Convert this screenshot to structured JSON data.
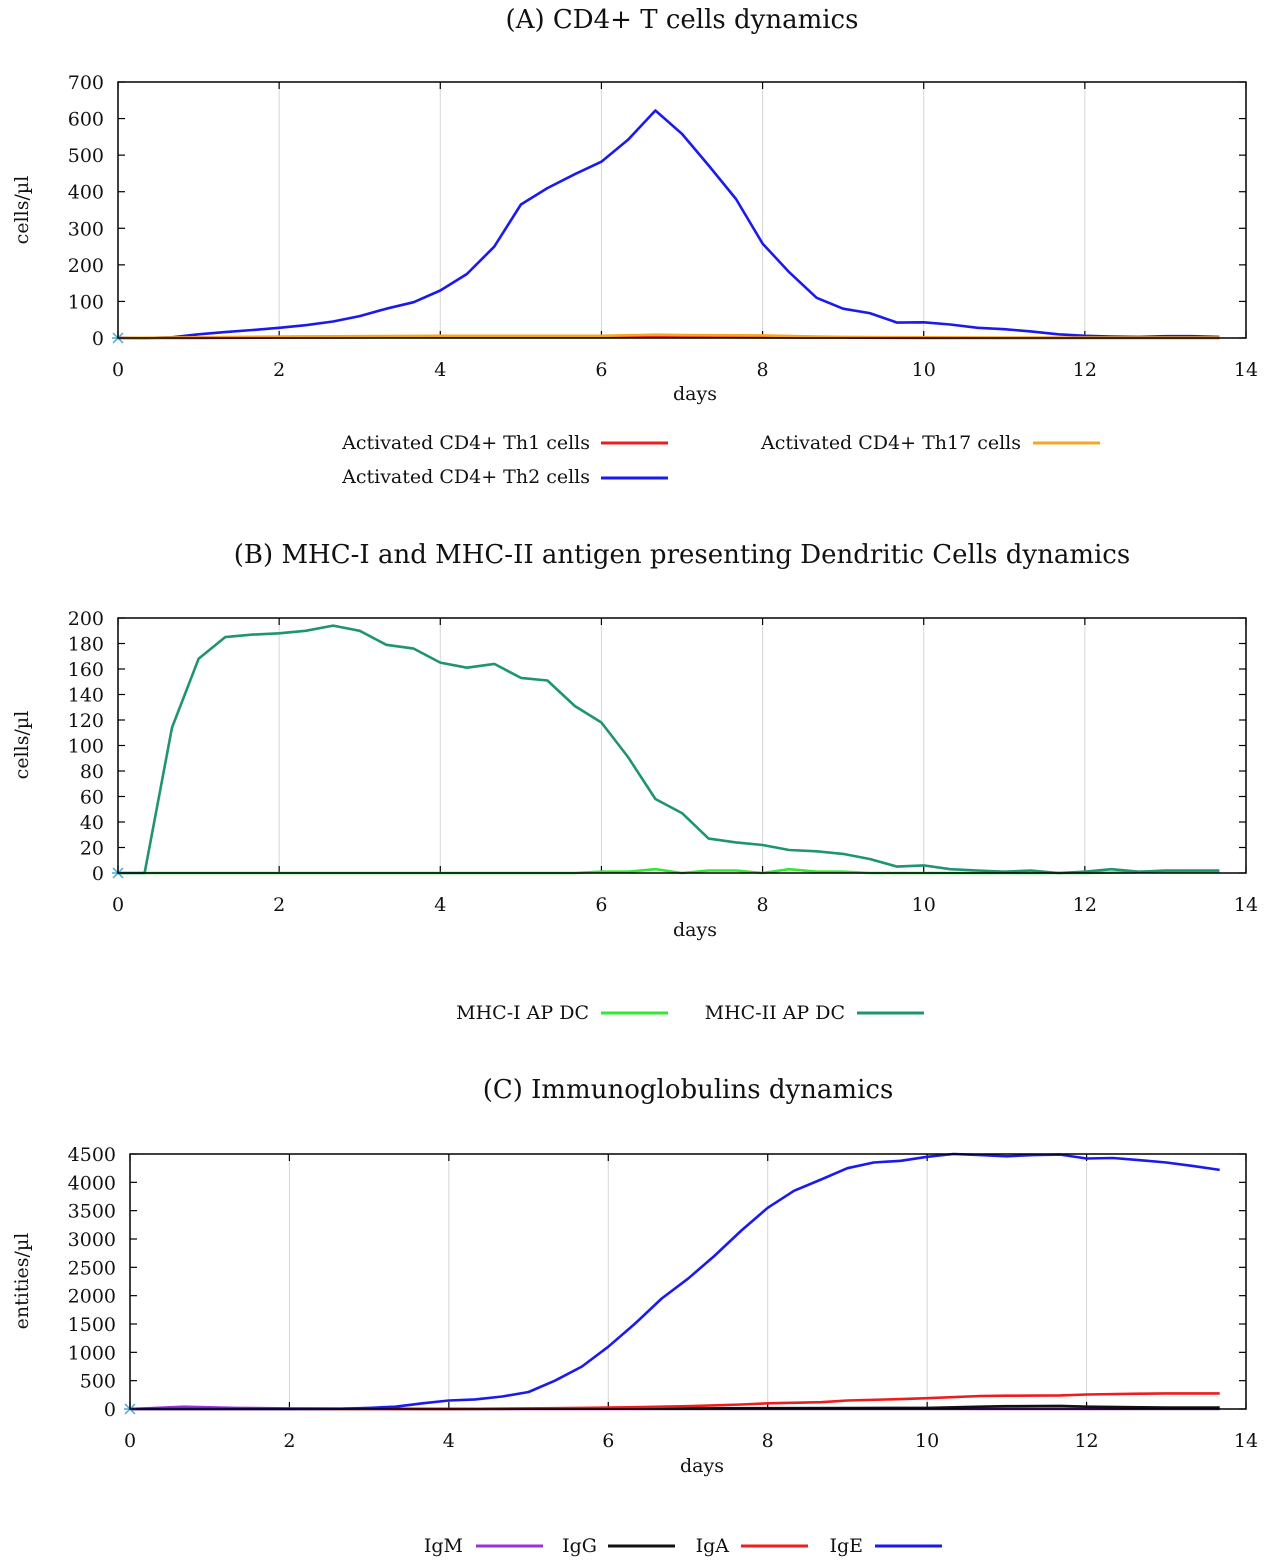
{
  "chart_data": [
    {
      "type": "line",
      "title": "(A) CD4+ T cells dynamics",
      "xlabel": "days",
      "ylabel": "cells/µl",
      "xlim": [
        0,
        14
      ],
      "ylim": [
        0,
        700
      ],
      "xticks": [
        0,
        2,
        4,
        6,
        8,
        10,
        12,
        14
      ],
      "yticks": [
        0,
        100,
        200,
        300,
        400,
        500,
        600,
        700
      ],
      "grid": true,
      "legend_position": "bottom",
      "series": [
        {
          "name": "Activated CD4+ Th1 cells",
          "color": "#ee1c1c",
          "x": [
            0,
            1,
            2,
            3,
            4,
            5,
            6,
            6.67,
            7,
            8,
            8.67,
            9,
            10,
            11,
            12,
            13,
            13.67
          ],
          "y": [
            0,
            0,
            1,
            2,
            3,
            3,
            3,
            4,
            3,
            2,
            1,
            1,
            0,
            0,
            0,
            0,
            0
          ]
        },
        {
          "name": "Activated CD4+ Th2 cells",
          "color": "#1a1aee",
          "x": [
            0,
            0.33,
            0.67,
            1,
            1.33,
            1.67,
            2,
            2.33,
            2.67,
            3,
            3.33,
            3.67,
            4,
            4.33,
            4.67,
            5,
            5.33,
            5.67,
            6,
            6.33,
            6.67,
            7,
            7.33,
            7.67,
            8,
            8.33,
            8.67,
            9,
            9.33,
            9.67,
            10,
            10.33,
            10.67,
            11,
            11.33,
            11.67,
            12,
            12.33,
            12.67,
            13,
            13.33,
            13.67
          ],
          "y": [
            0,
            0,
            2,
            10,
            16,
            22,
            28,
            35,
            45,
            60,
            80,
            98,
            130,
            175,
            250,
            365,
            410,
            448,
            482,
            542,
            622,
            558,
            472,
            380,
            258,
            180,
            110,
            80,
            68,
            42,
            43,
            37,
            28,
            24,
            18,
            10,
            6,
            4,
            3,
            5,
            5,
            3
          ]
        },
        {
          "name": "Activated CD4+ Th17 cells",
          "color": "#f5a623",
          "x": [
            0,
            1,
            2,
            3,
            4,
            5,
            6,
            6.67,
            7,
            8,
            8.67,
            9,
            10,
            11,
            12,
            13,
            13.67
          ],
          "y": [
            0,
            2,
            4,
            5,
            6,
            6,
            6,
            9,
            8,
            7,
            4,
            3,
            2,
            1,
            1,
            1,
            1
          ]
        }
      ]
    },
    {
      "type": "line",
      "title": "(B) MHC-I and MHC-II antigen presenting Dendritic Cells dynamics",
      "xlabel": "days",
      "ylabel": "cells/µl",
      "xlim": [
        0,
        14
      ],
      "ylim": [
        0,
        200
      ],
      "xticks": [
        0,
        2,
        4,
        6,
        8,
        10,
        12,
        14
      ],
      "yticks": [
        0,
        20,
        40,
        60,
        80,
        100,
        120,
        140,
        160,
        180,
        200
      ],
      "grid": true,
      "legend_position": "bottom",
      "series": [
        {
          "name": "MHC-I AP DC",
          "color": "#33e833",
          "x": [
            0,
            1,
            2,
            3,
            4,
            5,
            5.67,
            6,
            6.33,
            6.67,
            7,
            7.33,
            7.67,
            8,
            8.33,
            8.67,
            9,
            9.33,
            10,
            11,
            12,
            13,
            13.67
          ],
          "y": [
            0,
            0,
            0,
            0,
            0,
            0,
            0,
            1,
            1,
            3,
            0,
            2,
            2,
            0,
            3,
            1,
            1,
            0,
            0,
            0,
            0,
            1,
            1
          ]
        },
        {
          "name": "MHC-II AP DC",
          "color": "#1e9470",
          "x": [
            0,
            0.33,
            0.67,
            1,
            1.33,
            1.67,
            2,
            2.33,
            2.67,
            3,
            3.33,
            3.67,
            4,
            4.33,
            4.67,
            5,
            5.33,
            5.67,
            6,
            6.33,
            6.67,
            7,
            7.33,
            7.67,
            8,
            8.33,
            8.67,
            9,
            9.33,
            9.67,
            10,
            10.33,
            10.67,
            11,
            11.33,
            11.67,
            12,
            12.33,
            12.67,
            13,
            13.33,
            13.67
          ],
          "y": [
            0,
            0,
            114,
            168,
            185,
            187,
            188,
            190,
            194,
            190,
            179,
            176,
            165,
            161,
            164,
            153,
            151,
            131,
            118,
            91,
            58,
            47,
            27,
            24,
            22,
            18,
            17,
            15,
            11,
            5,
            6,
            3,
            2,
            1,
            2,
            0,
            1,
            3,
            1,
            2,
            2,
            2
          ]
        }
      ]
    },
    {
      "type": "line",
      "title": "(C) Immunoglobulins dynamics",
      "xlabel": "days",
      "ylabel": "entities/µl",
      "xlim": [
        0,
        14
      ],
      "ylim": [
        0,
        4500
      ],
      "xticks": [
        0,
        2,
        4,
        6,
        8,
        10,
        12,
        14
      ],
      "yticks": [
        0,
        500,
        1000,
        1500,
        2000,
        2500,
        3000,
        3500,
        4000,
        4500
      ],
      "grid": true,
      "legend_position": "bottom",
      "series": [
        {
          "name": "IgM",
          "color": "#9b30e0",
          "x": [
            0,
            0.33,
            0.67,
            1,
            1.33,
            1.67,
            2,
            3,
            4,
            5,
            6,
            7,
            8,
            9,
            10,
            11,
            12,
            13,
            13.67
          ],
          "y": [
            0,
            20,
            40,
            30,
            20,
            15,
            10,
            5,
            2,
            2,
            2,
            2,
            2,
            2,
            2,
            2,
            2,
            2,
            2
          ]
        },
        {
          "name": "IgG",
          "color": "#111111",
          "x": [
            0,
            1,
            2,
            3,
            4,
            5,
            6,
            7,
            8,
            9,
            10,
            10.67,
            11,
            11.67,
            12,
            12.67,
            13,
            13.67
          ],
          "y": [
            0,
            0,
            0,
            0,
            0,
            5,
            10,
            12,
            15,
            18,
            20,
            40,
            50,
            55,
            40,
            30,
            25,
            25
          ]
        },
        {
          "name": "IgA",
          "color": "#ee1c1c",
          "x": [
            0,
            1,
            2,
            3,
            4,
            5,
            5.67,
            6,
            6.67,
            7,
            7.67,
            8,
            8.67,
            9,
            9.67,
            10,
            10.67,
            11,
            11.67,
            12,
            12.67,
            13,
            13.67
          ],
          "y": [
            0,
            0,
            0,
            0,
            0,
            10,
            20,
            25,
            40,
            50,
            80,
            100,
            120,
            150,
            175,
            190,
            230,
            235,
            240,
            255,
            270,
            275,
            275
          ]
        },
        {
          "name": "IgE",
          "color": "#1a1aee",
          "x": [
            0,
            1,
            2,
            2.67,
            3,
            3.33,
            3.67,
            4,
            4.33,
            4.67,
            5,
            5.33,
            5.67,
            6,
            6.33,
            6.67,
            7,
            7.33,
            7.67,
            8,
            8.33,
            8.67,
            9,
            9.33,
            9.67,
            10,
            10.33,
            10.67,
            11,
            11.33,
            11.67,
            12,
            12.33,
            12.67,
            13,
            13.33,
            13.67
          ],
          "y": [
            0,
            0,
            0,
            5,
            20,
            40,
            100,
            150,
            170,
            220,
            300,
            500,
            750,
            1100,
            1500,
            1950,
            2300,
            2700,
            3150,
            3550,
            3850,
            4050,
            4250,
            4350,
            4380,
            4450,
            4500,
            4480,
            4460,
            4480,
            4490,
            4420,
            4430,
            4390,
            4350,
            4290,
            4220
          ]
        }
      ]
    }
  ]
}
